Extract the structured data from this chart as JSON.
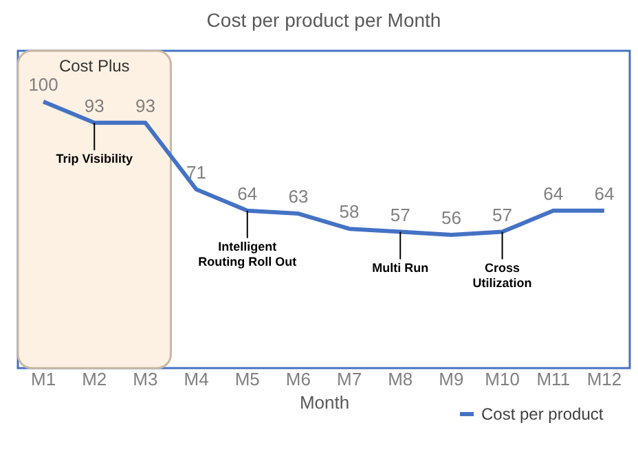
{
  "chart_data": {
    "type": "line",
    "title": "Cost per product per Month",
    "xlabel": "Month",
    "categories": [
      "M1",
      "M2",
      "M3",
      "M4",
      "M5",
      "M6",
      "M7",
      "M8",
      "M9",
      "M10",
      "M11",
      "M12"
    ],
    "series": [
      {
        "name": "Cost per product",
        "color": "#4472c4",
        "values": [
          100,
          93,
          93,
          71,
          64,
          63,
          58,
          57,
          56,
          57,
          64,
          64
        ]
      }
    ],
    "data_labels": true,
    "legend": "bottom right",
    "grid": false,
    "marker": "none",
    "line_style": "solid",
    "bands": [
      {
        "axis": "x",
        "from": "M1",
        "to": "M3",
        "label": "Cost Plus",
        "color": "#fdf1e3"
      }
    ],
    "annotations": [
      {
        "text": "Trip Visibility",
        "x": "M2",
        "y": 93
      },
      {
        "text": "Intelligent Routing Roll Out",
        "x": "M5",
        "y": 64
      },
      {
        "text": "Multi Run",
        "x": "M8",
        "y": 57
      },
      {
        "text": "Cross Utilization",
        "x": "M10",
        "y": 57
      }
    ]
  }
}
